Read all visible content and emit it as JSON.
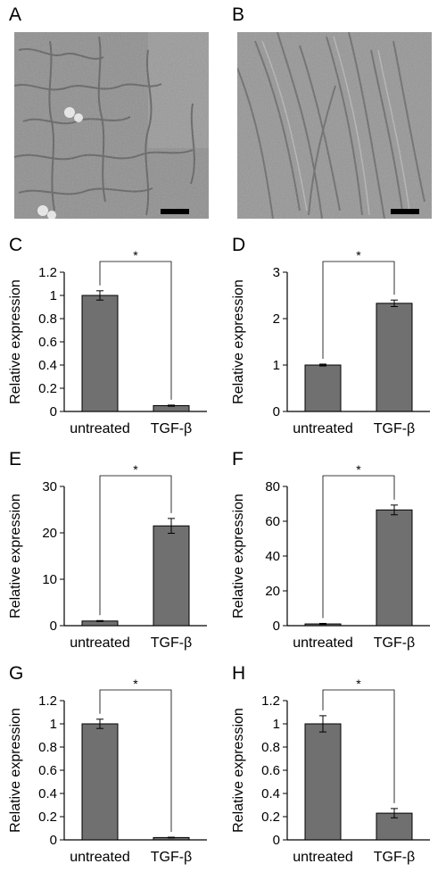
{
  "figure": {
    "panels": [
      {
        "letter": "A",
        "description": "microscopy-untreated"
      },
      {
        "letter": "B",
        "description": "microscopy-tgf-beta"
      }
    ]
  },
  "chart_data": [
    {
      "letter": "C",
      "type": "bar",
      "categories": [
        "untreated",
        "TGF-β"
      ],
      "values": [
        1.0,
        0.05
      ],
      "errors": [
        0.04,
        0.005
      ],
      "ylabel": "Relative expression",
      "ylim": [
        0,
        1.2
      ],
      "yticks": [
        0,
        0.2,
        0.4,
        0.6,
        0.8,
        1,
        1.2
      ],
      "significance": "*",
      "bar_color": "#707070"
    },
    {
      "letter": "D",
      "type": "bar",
      "categories": [
        "untreated",
        "TGF-β"
      ],
      "values": [
        1.0,
        2.33
      ],
      "errors": [
        0.02,
        0.07
      ],
      "ylabel": "Relative expression",
      "ylim": [
        0,
        3
      ],
      "yticks": [
        0,
        1,
        2,
        3
      ],
      "significance": "*",
      "bar_color": "#707070"
    },
    {
      "letter": "E",
      "type": "bar",
      "categories": [
        "untreated",
        "TGF-β"
      ],
      "values": [
        1.0,
        21.5
      ],
      "errors": [
        0.1,
        1.6
      ],
      "ylabel": "Relative expression",
      "ylim": [
        0,
        30
      ],
      "yticks": [
        0,
        10,
        20,
        30
      ],
      "significance": "*",
      "bar_color": "#707070"
    },
    {
      "letter": "F",
      "type": "bar",
      "categories": [
        "untreated",
        "TGF-β"
      ],
      "values": [
        1.0,
        66.5
      ],
      "errors": [
        0.3,
        2.8
      ],
      "ylabel": "Relative expression",
      "ylim": [
        0,
        80
      ],
      "yticks": [
        0,
        20,
        40,
        60,
        80
      ],
      "significance": "*",
      "bar_color": "#707070"
    },
    {
      "letter": "G",
      "type": "bar",
      "categories": [
        "untreated",
        "TGF-β"
      ],
      "values": [
        1.0,
        0.02
      ],
      "errors": [
        0.04,
        0.003
      ],
      "ylabel": "Relative expression",
      "ylim": [
        0,
        1.2
      ],
      "yticks": [
        0,
        0.2,
        0.4,
        0.6,
        0.8,
        1,
        1.2
      ],
      "significance": "*",
      "bar_color": "#707070"
    },
    {
      "letter": "H",
      "type": "bar",
      "categories": [
        "untreated",
        "TGF-β"
      ],
      "values": [
        1.0,
        0.23
      ],
      "errors": [
        0.07,
        0.04
      ],
      "ylabel": "Relative expression",
      "ylim": [
        0,
        1.2
      ],
      "yticks": [
        0,
        0.2,
        0.4,
        0.6,
        0.8,
        1,
        1.2
      ],
      "significance": "*",
      "bar_color": "#707070"
    }
  ]
}
